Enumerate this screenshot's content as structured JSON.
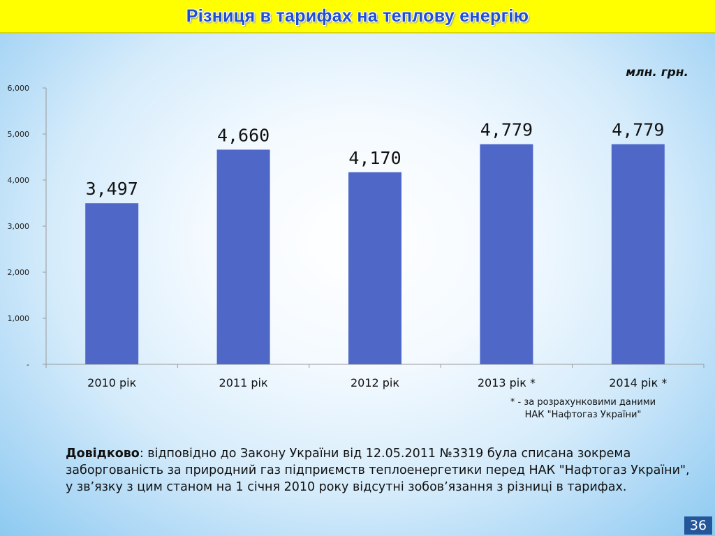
{
  "header": {
    "title": "Різниця в тарифах на теплову енергію"
  },
  "unit_label": "млн. грн.",
  "chart_data": {
    "type": "bar",
    "categories": [
      "2010 рік",
      "2011 рік",
      "2012 рік",
      "2013 рік *",
      "2014 рік *"
    ],
    "values": [
      3497,
      4660,
      4170,
      4779,
      4779
    ],
    "value_labels": [
      "3,497",
      "4,660",
      "4,170",
      "4,779",
      "4,779"
    ],
    "yticks": [
      {
        "value": 0,
        "label": "-"
      },
      {
        "value": 1000,
        "label": "1,000"
      },
      {
        "value": 2000,
        "label": "2,000"
      },
      {
        "value": 3000,
        "label": "3,000"
      },
      {
        "value": 4000,
        "label": "4,000"
      },
      {
        "value": 5000,
        "label": "5,000"
      },
      {
        "value": 6000,
        "label": "6,000"
      }
    ],
    "ylim": [
      0,
      6000
    ],
    "grid": false,
    "bar_color": "#4f68c8"
  },
  "footnote": {
    "line1": "* - за розрахунковими даними",
    "line2": "НАК \"Нафтогаз України\""
  },
  "reference": {
    "label": "Довідково",
    "text": ": відповідно до Закону України від 12.05.2011 №3319 була списана зокрема заборгованість за природний газ підприємств теплоенергетики перед НАК \"Нафтогаз України\", у зв’язку з цим станом на  1 січня 2010 року відсутні зобов’язання з різниці в тарифах."
  },
  "page_number": "36"
}
